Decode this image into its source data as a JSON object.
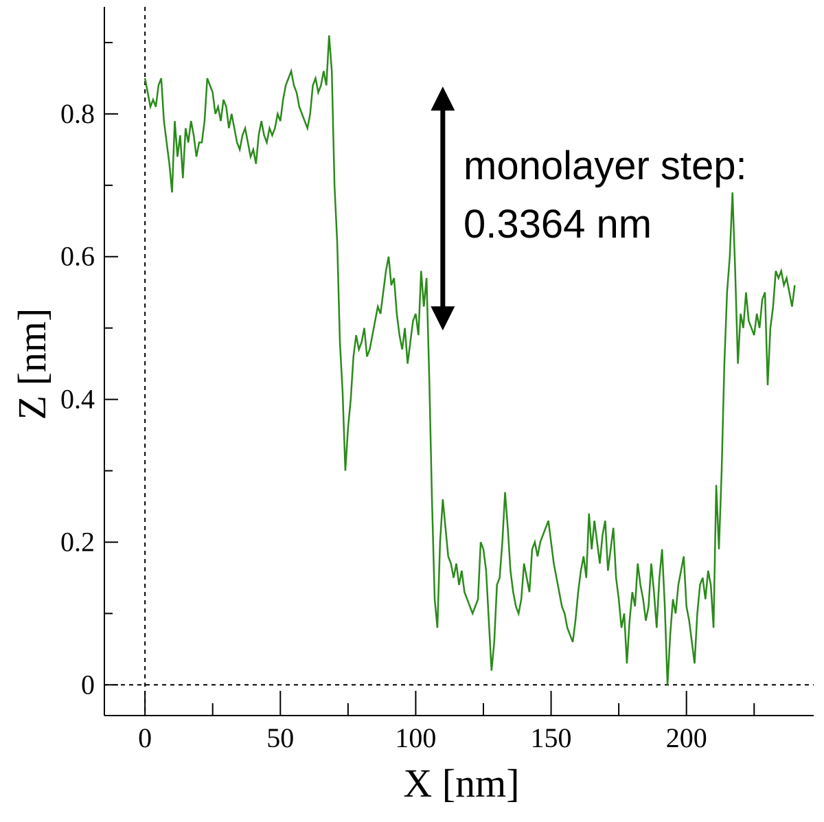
{
  "chart_data": {
    "type": "line",
    "x_label": "X [nm]",
    "y_label": "Z [nm]",
    "xlim": [
      -15,
      247
    ],
    "ylim": [
      -0.043,
      0.95
    ],
    "xticks": [
      0,
      50,
      100,
      150,
      200
    ],
    "yticks": [
      0,
      0.2,
      0.4,
      0.6,
      0.8
    ],
    "xminorticks": [
      25,
      75,
      125,
      175,
      225
    ],
    "yminorticks": [
      0.1,
      0.3,
      0.5,
      0.7,
      0.9
    ],
    "zero_lines": true,
    "annotation": {
      "lines": [
        "monolayer step:",
        "0.3364 nm"
      ],
      "x": 110,
      "y_from": 0.5,
      "y_to": 0.835
    },
    "x": [
      0,
      1,
      2,
      3,
      4,
      5,
      6,
      7,
      8,
      9,
      10,
      11,
      12,
      13,
      14,
      15,
      16,
      17,
      18,
      19,
      20,
      21,
      22,
      23,
      24,
      25,
      26,
      27,
      28,
      29,
      30,
      31,
      32,
      33,
      34,
      35,
      36,
      37,
      38,
      39,
      40,
      41,
      42,
      43,
      44,
      45,
      46,
      47,
      48,
      49,
      50,
      51,
      52,
      53,
      54,
      55,
      56,
      57,
      58,
      59,
      60,
      61,
      62,
      63,
      64,
      65,
      66,
      67,
      68,
      69,
      70,
      71,
      72,
      73,
      74,
      75,
      76,
      77,
      78,
      79,
      80,
      81,
      82,
      83,
      84,
      85,
      86,
      87,
      88,
      89,
      90,
      91,
      92,
      93,
      94,
      95,
      96,
      97,
      98,
      99,
      100,
      101,
      102,
      103,
      104,
      105,
      106,
      107,
      108,
      109,
      110,
      111,
      112,
      113,
      114,
      115,
      116,
      117,
      118,
      119,
      120,
      121,
      122,
      123,
      124,
      125,
      126,
      127,
      128,
      129,
      130,
      131,
      132,
      133,
      134,
      135,
      136,
      137,
      138,
      139,
      140,
      141,
      142,
      143,
      144,
      145,
      146,
      147,
      148,
      149,
      150,
      151,
      152,
      153,
      154,
      155,
      156,
      157,
      158,
      159,
      160,
      161,
      162,
      163,
      164,
      165,
      166,
      167,
      168,
      169,
      170,
      171,
      172,
      173,
      174,
      175,
      176,
      177,
      178,
      179,
      180,
      181,
      182,
      183,
      184,
      185,
      186,
      187,
      188,
      189,
      190,
      191,
      192,
      193,
      194,
      195,
      196,
      197,
      198,
      199,
      200,
      201,
      202,
      203,
      204,
      205,
      206,
      207,
      208,
      209,
      210,
      211,
      212,
      213,
      214,
      215,
      216,
      217,
      218,
      219,
      220,
      221,
      222,
      223,
      224,
      225,
      226,
      227,
      228,
      229,
      230,
      231,
      232,
      233,
      234,
      235,
      236,
      237,
      238,
      239,
      240
    ],
    "series": [
      {
        "color": "#2a8a1a",
        "values": [
          0.85,
          0.83,
          0.81,
          0.82,
          0.81,
          0.84,
          0.85,
          0.79,
          0.76,
          0.73,
          0.69,
          0.79,
          0.74,
          0.77,
          0.71,
          0.78,
          0.76,
          0.79,
          0.77,
          0.74,
          0.76,
          0.76,
          0.79,
          0.85,
          0.84,
          0.83,
          0.8,
          0.81,
          0.79,
          0.82,
          0.81,
          0.78,
          0.8,
          0.78,
          0.76,
          0.75,
          0.77,
          0.78,
          0.76,
          0.74,
          0.75,
          0.73,
          0.77,
          0.79,
          0.77,
          0.76,
          0.78,
          0.77,
          0.78,
          0.8,
          0.79,
          0.82,
          0.84,
          0.85,
          0.86,
          0.84,
          0.83,
          0.81,
          0.8,
          0.79,
          0.78,
          0.8,
          0.84,
          0.85,
          0.83,
          0.84,
          0.86,
          0.84,
          0.91,
          0.86,
          0.7,
          0.62,
          0.48,
          0.41,
          0.3,
          0.36,
          0.4,
          0.46,
          0.49,
          0.47,
          0.48,
          0.5,
          0.46,
          0.47,
          0.49,
          0.51,
          0.53,
          0.52,
          0.55,
          0.58,
          0.6,
          0.56,
          0.57,
          0.52,
          0.49,
          0.47,
          0.5,
          0.45,
          0.48,
          0.51,
          0.52,
          0.49,
          0.58,
          0.53,
          0.57,
          0.43,
          0.26,
          0.12,
          0.08,
          0.2,
          0.26,
          0.22,
          0.18,
          0.17,
          0.15,
          0.17,
          0.14,
          0.16,
          0.13,
          0.12,
          0.11,
          0.1,
          0.11,
          0.12,
          0.2,
          0.19,
          0.16,
          0.09,
          0.02,
          0.06,
          0.14,
          0.15,
          0.2,
          0.27,
          0.22,
          0.16,
          0.13,
          0.11,
          0.1,
          0.12,
          0.17,
          0.15,
          0.13,
          0.19,
          0.2,
          0.18,
          0.2,
          0.21,
          0.22,
          0.23,
          0.2,
          0.17,
          0.15,
          0.13,
          0.11,
          0.1,
          0.08,
          0.07,
          0.06,
          0.09,
          0.13,
          0.16,
          0.18,
          0.15,
          0.24,
          0.19,
          0.23,
          0.2,
          0.17,
          0.21,
          0.23,
          0.16,
          0.19,
          0.22,
          0.15,
          0.12,
          0.08,
          0.1,
          0.03,
          0.09,
          0.13,
          0.11,
          0.17,
          0.14,
          0.12,
          0.09,
          0.11,
          0.17,
          0.13,
          0.08,
          0.15,
          0.19,
          0.11,
          0.0,
          0.07,
          0.12,
          0.1,
          0.14,
          0.16,
          0.18,
          0.11,
          0.09,
          0.06,
          0.03,
          0.1,
          0.14,
          0.15,
          0.12,
          0.16,
          0.14,
          0.08,
          0.28,
          0.19,
          0.3,
          0.45,
          0.55,
          0.6,
          0.69,
          0.58,
          0.45,
          0.52,
          0.5,
          0.55,
          0.51,
          0.5,
          0.49,
          0.52,
          0.5,
          0.54,
          0.55,
          0.42,
          0.5,
          0.53,
          0.58,
          0.57,
          0.58,
          0.56,
          0.57,
          0.55,
          0.53,
          0.56
        ]
      }
    ]
  }
}
